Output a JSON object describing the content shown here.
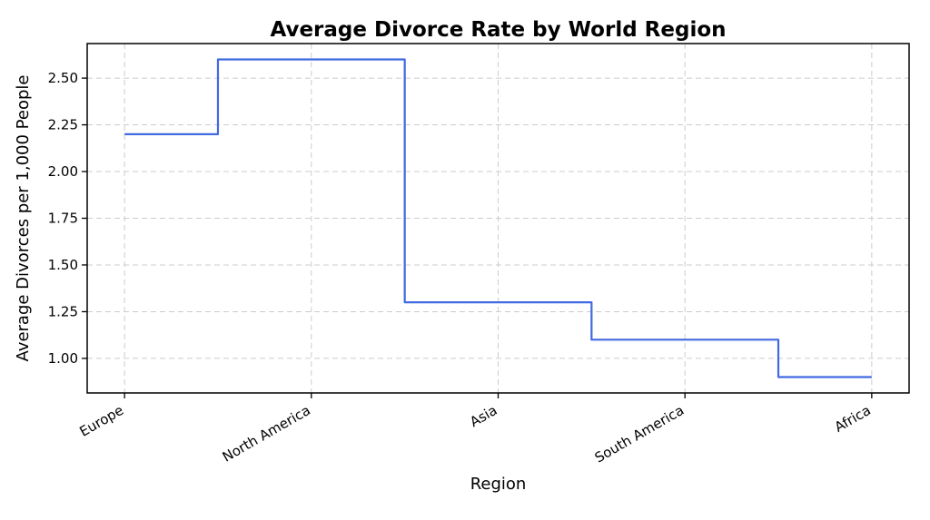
{
  "chart_data": {
    "type": "line",
    "step_style": "mid",
    "title": "Average Divorce Rate by World Region",
    "xlabel": "Region",
    "ylabel": "Average Divorces per 1,000 People",
    "categories": [
      "Europe",
      "North America",
      "Asia",
      "South America",
      "Africa"
    ],
    "series": [
      {
        "name": "Average Divorce Rate",
        "values": [
          2.2,
          2.6,
          1.3,
          1.1,
          0.9
        ]
      }
    ],
    "yticks": [
      1.0,
      1.25,
      1.5,
      1.75,
      2.0,
      2.25,
      2.5
    ],
    "ytick_labels": [
      "1.00",
      "1.25",
      "1.50",
      "1.75",
      "2.00",
      "2.25",
      "2.50"
    ],
    "ylim": [
      0.815,
      2.685
    ],
    "xlim": [
      -0.2,
      4.2
    ],
    "grid": "dashed, on",
    "legend": "none",
    "colors": {
      "line": "#4169E1",
      "grid": "#cccccc",
      "frame": "#000000",
      "text": "#000000",
      "background": "#ffffff"
    }
  }
}
